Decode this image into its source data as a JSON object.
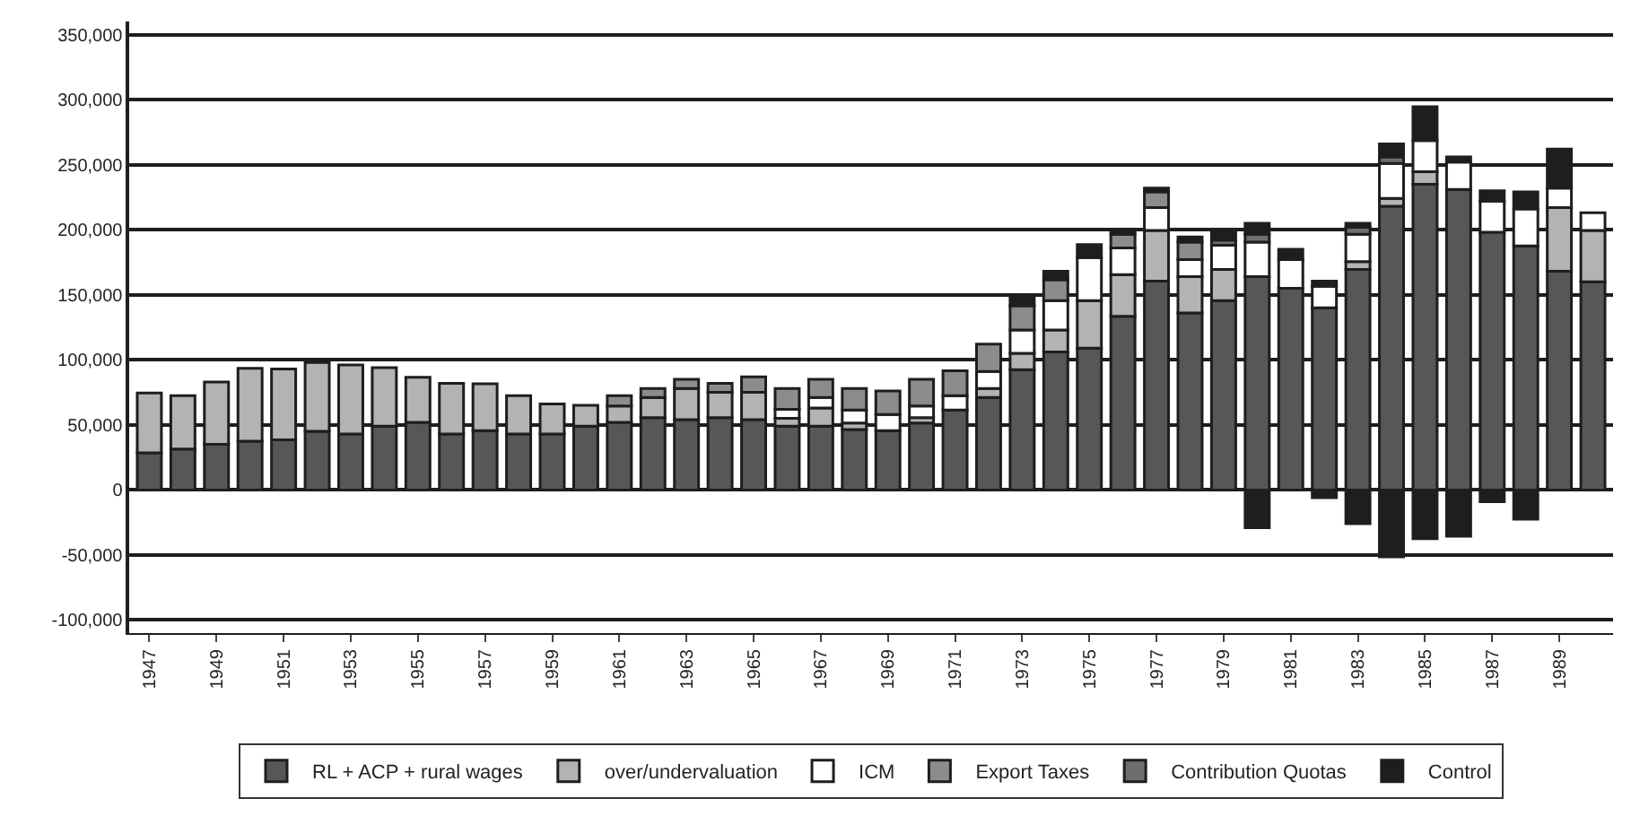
{
  "chart_data": {
    "type": "bar",
    "stacked": true,
    "grid": "y",
    "legend": "bottom",
    "categories": [
      "1947",
      null,
      "1949",
      null,
      "1951",
      null,
      "1953",
      null,
      "1955",
      null,
      "1957",
      null,
      "1959",
      null,
      "1961",
      null,
      "1963",
      null,
      "1965",
      null,
      "1967",
      null,
      "1969",
      null,
      "1971",
      null,
      "1973",
      null,
      "1975",
      null,
      "1977",
      null,
      "1979",
      null,
      "1981",
      null,
      "1983",
      null,
      "1985",
      null,
      "1987",
      null,
      "1989",
      null
    ],
    "ylim": [
      -110000,
      360000
    ],
    "yticks": [
      {
        "value": -100000,
        "label": "-100,000"
      },
      {
        "value": -50000,
        "label": "-50,000"
      },
      0,
      {
        "value": 50000,
        "label": "50,000"
      },
      {
        "value": 100000,
        "label": "100,000"
      },
      {
        "value": 150000,
        "label": "150,000"
      },
      {
        "value": 200000,
        "label": "200,000"
      },
      {
        "value": 250000,
        "label": "250,000"
      },
      {
        "value": 300000,
        "label": "300,000"
      },
      {
        "value": 350000,
        "label": "350,000"
      }
    ],
    "series": [
      {
        "name": "RL + ACP + rural wages",
        "color": "#575757",
        "values": [
          28500,
          31500,
          35000,
          37500,
          38500,
          45000,
          43000,
          49000,
          52000,
          43000,
          45500,
          43000,
          43000,
          49000,
          52000,
          55500,
          54000,
          55500,
          54000,
          49000,
          49000,
          46500,
          45500,
          51500,
          61500,
          71000,
          92500,
          106000,
          109000,
          133500,
          160500,
          136000,
          145500,
          164000,
          155000,
          140000,
          169500,
          218000,
          235000,
          231000,
          198000,
          187500,
          168000,
          160000
        ]
      },
      {
        "name": "over/undervaluation",
        "color": "#b3b3b3",
        "values": [
          46000,
          41000,
          48000,
          56000,
          54500,
          53000,
          53000,
          45000,
          34500,
          39000,
          36000,
          29500,
          23000,
          16000,
          12500,
          15500,
          24000,
          19500,
          21000,
          6000,
          14000,
          5000,
          null,
          4000,
          null,
          7000,
          12500,
          17000,
          36500,
          32000,
          39000,
          28000,
          24000,
          null,
          null,
          null,
          6000,
          6000,
          9500,
          null,
          null,
          null,
          49000,
          39500
        ]
      },
      {
        "name": "ICM",
        "color": "#ffffff",
        "values": [
          null,
          null,
          null,
          null,
          null,
          null,
          null,
          null,
          null,
          null,
          null,
          null,
          null,
          null,
          null,
          null,
          null,
          null,
          null,
          7000,
          8000,
          10000,
          12500,
          9000,
          11000,
          13000,
          18000,
          22500,
          33000,
          20500,
          17500,
          13000,
          18500,
          26500,
          22000,
          16500,
          21000,
          27000,
          24000,
          21000,
          24000,
          28500,
          15000,
          13500
        ]
      },
      {
        "name": "Export Taxes",
        "color": "#8c8c8c",
        "values": [
          null,
          null,
          null,
          null,
          null,
          null,
          null,
          null,
          null,
          null,
          null,
          null,
          null,
          null,
          8000,
          7000,
          7000,
          7000,
          12000,
          16000,
          14000,
          16500,
          18000,
          20500,
          19000,
          21000,
          18500,
          16000,
          null,
          10500,
          12000,
          13500,
          null,
          null,
          null,
          null,
          null,
          null,
          null,
          null,
          null,
          null,
          null,
          null
        ]
      },
      {
        "name": "Contribution Quotas",
        "color": "#6e6e6e",
        "values": [
          null,
          null,
          null,
          null,
          null,
          null,
          null,
          null,
          null,
          null,
          null,
          null,
          null,
          null,
          null,
          null,
          null,
          null,
          null,
          null,
          null,
          null,
          null,
          null,
          null,
          null,
          null,
          null,
          null,
          null,
          null,
          null,
          4000,
          6000,
          null,
          null,
          5500,
          5000,
          null,
          null,
          null,
          null,
          null,
          null
        ]
      },
      {
        "name": "Control",
        "color": "#1e1e1e",
        "values": [
          null,
          null,
          null,
          null,
          null,
          null,
          null,
          null,
          null,
          null,
          null,
          null,
          null,
          null,
          null,
          null,
          null,
          null,
          null,
          null,
          null,
          null,
          null,
          null,
          null,
          null,
          7000,
          6500,
          10000,
          3500,
          3000,
          4000,
          6500,
          8500,
          8000,
          4000,
          3000,
          10000,
          26000,
          4000,
          8000,
          13000,
          30000,
          null
        ]
      },
      {
        "color": "#1e1e1e",
        "values": [
          null,
          null,
          null,
          null,
          null,
          null,
          null,
          null,
          null,
          null,
          null,
          null,
          null,
          null,
          null,
          null,
          null,
          null,
          null,
          null,
          null,
          null,
          null,
          null,
          null,
          null,
          null,
          null,
          null,
          null,
          null,
          null,
          null,
          -29000,
          null,
          -6000,
          -26000,
          -51500,
          -37500,
          -35500,
          -9000,
          -22500,
          null,
          null
        ]
      }
    ]
  }
}
